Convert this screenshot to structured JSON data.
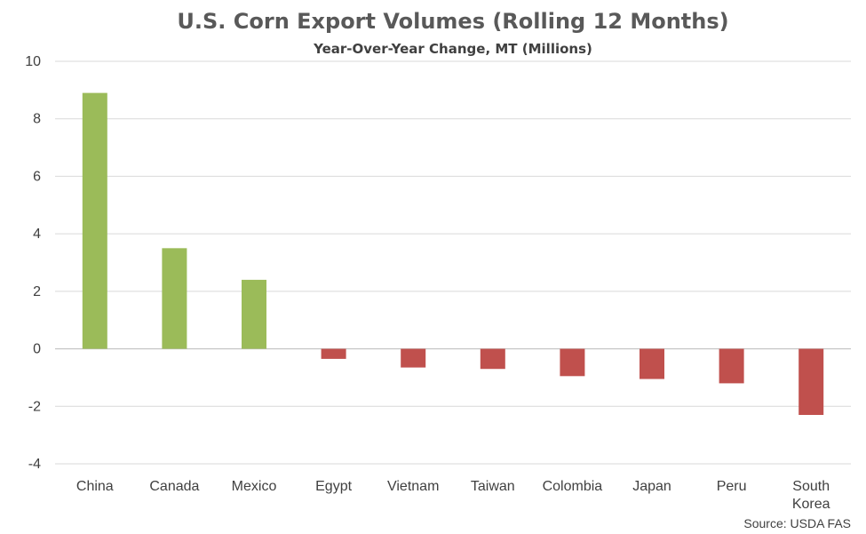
{
  "chart_data": {
    "type": "bar",
    "title": "U.S. Corn Export Volumes (Rolling 12 Months)",
    "subtitle": "Year-Over-Year Change, MT (Millions)",
    "categories": [
      "China",
      "Canada",
      "Mexico",
      "Egypt",
      "Vietnam",
      "Taiwan",
      "Colombia",
      "Japan",
      "Peru",
      "South Korea"
    ],
    "values": [
      8.9,
      3.5,
      2.4,
      -0.35,
      -0.65,
      -0.7,
      -0.95,
      -1.05,
      -1.2,
      -2.3
    ],
    "ylim": [
      -4,
      10
    ],
    "yticks": [
      -4,
      -2,
      0,
      2,
      4,
      6,
      8,
      10
    ],
    "grid": true,
    "legend": "none",
    "source": "Source: USDA FAS",
    "colors": {
      "positive": "#9BBB59",
      "negative": "#C0504D",
      "grid": "#D9D9D9",
      "text": "#404040"
    }
  }
}
